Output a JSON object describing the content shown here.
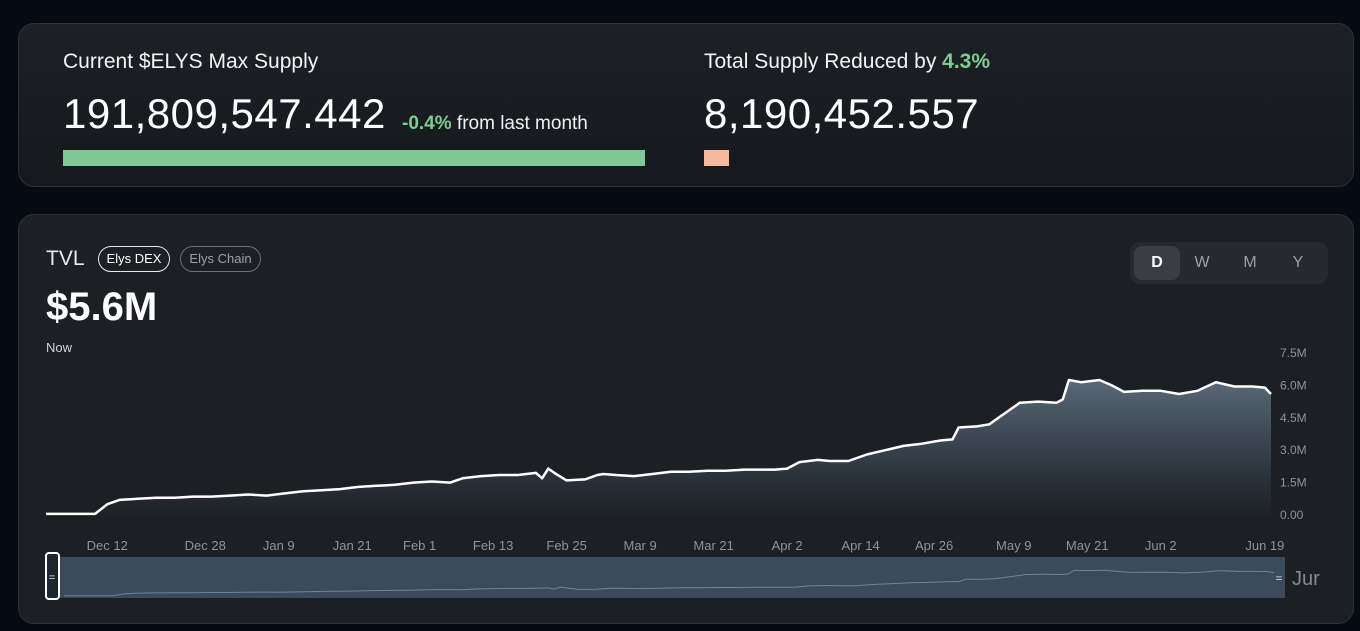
{
  "supply": {
    "title": "Current $ELYS Max Supply",
    "value": "191,809,547.442",
    "change": "-0.4%",
    "change_suffix": "from last month",
    "bar_fill_fraction": 1.0,
    "bar_color": "#7fc896"
  },
  "reduced": {
    "title_prefix": "Total Supply Reduced by",
    "percent": "4.3%",
    "value": "8,190,452.557",
    "bar_fill_fraction": 0.043,
    "bar_color": "#f7b79a"
  },
  "tvl": {
    "label": "TVL",
    "tabs": [
      "Elys DEX",
      "Elys Chain"
    ],
    "active_tab": "Elys DEX",
    "value": "$5.6M",
    "subtitle": "Now",
    "periods": [
      "D",
      "W",
      "M",
      "Y"
    ],
    "active_period": "D",
    "navigator_overflow_label": "Jur"
  },
  "chart_data": {
    "type": "area",
    "y_ticks": [
      "7.5M",
      "6.0M",
      "4.5M",
      "3.0M",
      "1.5M",
      "0.00"
    ],
    "ylim": [
      0,
      7500000
    ],
    "x_ticks": [
      "Dec 12",
      "Dec 28",
      "Jan 9",
      "Jan 21",
      "Feb 1",
      "Feb 13",
      "Feb 25",
      "Mar 9",
      "Mar 21",
      "Apr 2",
      "Apr 14",
      "Apr 26",
      "May 9",
      "May 21",
      "Jun 2",
      "Jun 19"
    ],
    "x_tick_days": [
      0,
      16,
      28,
      40,
      51,
      63,
      75,
      87,
      99,
      111,
      123,
      135,
      148,
      160,
      172,
      189
    ],
    "series": [
      {
        "x": [
          -10,
          -2,
          0,
          2,
          5,
          8,
          11,
          14,
          17,
          20,
          23,
          26,
          29,
          32,
          35,
          38,
          41,
          44,
          47,
          50,
          53,
          56,
          58,
          61,
          64,
          67,
          70,
          71,
          72,
          73,
          75,
          78,
          80,
          81,
          83,
          86,
          89,
          92,
          95,
          98,
          101,
          104,
          107,
          109,
          111,
          113,
          116,
          118,
          121,
          124,
          127,
          130,
          133,
          136,
          138,
          139,
          142,
          144,
          146,
          149,
          152,
          155,
          156,
          157,
          159,
          162,
          164,
          166,
          169,
          172,
          175,
          178,
          181,
          184,
          187,
          189,
          190
        ],
        "y": [
          0.05,
          0.05,
          0.5,
          0.7,
          0.75,
          0.8,
          0.8,
          0.85,
          0.85,
          0.9,
          0.95,
          0.9,
          1.0,
          1.1,
          1.15,
          1.2,
          1.3,
          1.35,
          1.4,
          1.5,
          1.55,
          1.5,
          1.7,
          1.8,
          1.85,
          1.85,
          1.95,
          1.7,
          2.15,
          1.95,
          1.6,
          1.65,
          1.85,
          1.9,
          1.85,
          1.8,
          1.9,
          2.0,
          2.0,
          2.05,
          2.05,
          2.1,
          2.1,
          2.1,
          2.15,
          2.45,
          2.55,
          2.5,
          2.5,
          2.8,
          3.0,
          3.2,
          3.3,
          3.45,
          3.5,
          4.05,
          4.1,
          4.2,
          4.6,
          5.2,
          5.25,
          5.2,
          5.35,
          6.25,
          6.15,
          6.25,
          6.0,
          5.7,
          5.75,
          5.75,
          5.6,
          5.75,
          6.15,
          5.95,
          5.95,
          5.9,
          5.6
        ]
      }
    ]
  }
}
